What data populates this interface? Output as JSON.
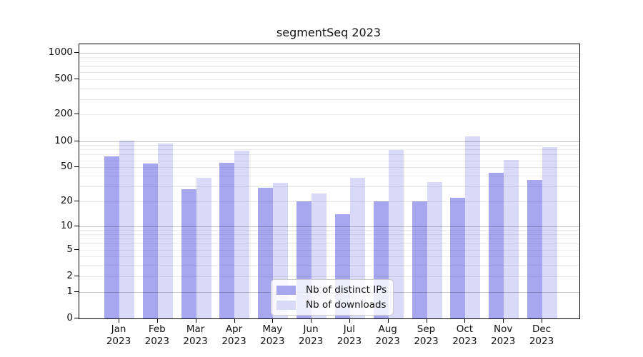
{
  "figure": {
    "background": "#ffffff",
    "axis_color": "#000000"
  },
  "chart_data": {
    "type": "bar",
    "title": "segmentSeq 2023",
    "categories": [
      "Jan",
      "Feb",
      "Mar",
      "Apr",
      "May",
      "Jun",
      "Jul",
      "Aug",
      "Sep",
      "Oct",
      "Nov",
      "Dec"
    ],
    "category_year": "2023",
    "series": [
      {
        "name": "Nb of distinct IPs",
        "color": "#a7a7f0",
        "values": [
          67,
          55,
          28,
          56,
          29,
          20,
          14,
          20,
          20,
          22,
          43,
          36
        ]
      },
      {
        "name": "Nb of downloads",
        "color": "#d9d9f8",
        "values": [
          101,
          93,
          38,
          77,
          33,
          25,
          38,
          79,
          34,
          113,
          61,
          85
        ]
      }
    ],
    "yscale": "log1p",
    "ylim": [
      0,
      1250
    ],
    "y_ticks": [
      0,
      1,
      2,
      5,
      10,
      20,
      50,
      100,
      200,
      500,
      1000
    ],
    "y_major_gridlines": [
      1,
      10,
      100,
      1000
    ],
    "y_minor_gridlines": [
      2,
      3,
      4,
      5,
      6,
      7,
      8,
      9,
      20,
      30,
      40,
      50,
      60,
      70,
      80,
      90,
      200,
      300,
      400,
      500,
      600,
      700,
      800,
      900
    ],
    "grid": true,
    "legend_position": "bottom-center",
    "xlabel": "",
    "ylabel": ""
  }
}
